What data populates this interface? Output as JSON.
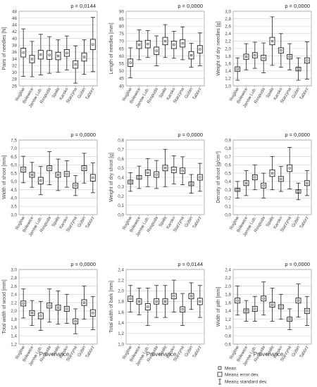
{
  "chart_data": [
    {
      "type": "boxplot",
      "ylabel": "Pairs of needles [N]",
      "pvalue": "p = 0,0144",
      "categories": [
        "Roglów",
        "Bolewice",
        "Janów Lub.",
        "Rospuda",
        "Spała",
        "Karsko",
        "Starzyna",
        "Gubin",
        "Tabórz"
      ],
      "ylim": [
        26,
        48
      ],
      "yticks": [
        26,
        28,
        30,
        32,
        34,
        36,
        38,
        40,
        42,
        44,
        46,
        48
      ],
      "ytick_labels": [
        "26",
        "28",
        "30",
        "32",
        "34",
        "36",
        "38",
        "40",
        "42",
        "44",
        "46",
        "48"
      ],
      "mean": [
        35.8,
        33.9,
        35.2,
        35.1,
        34.8,
        35.7,
        32.3,
        34.5,
        38.2
      ],
      "se": [
        1.3,
        1.1,
        1.3,
        1.3,
        1.1,
        1.0,
        1.1,
        1.2,
        1.5
      ],
      "sd": [
        7.0,
        5.2,
        6.0,
        5.4,
        4.8,
        5.0,
        5.5,
        5.1,
        8.0
      ]
    },
    {
      "type": "boxplot",
      "ylabel": "Length of needles [mm]",
      "pvalue": "p = 0,0000",
      "categories": [
        "Roglów",
        "Bolewice",
        "Janów Lub.",
        "Rospuda",
        "Spała",
        "Karsko",
        "Starzyna",
        "Gubin",
        "Tabórz"
      ],
      "ylim": [
        40,
        90
      ],
      "yticks": [
        40,
        45,
        50,
        55,
        60,
        65,
        70,
        75,
        80,
        85,
        90
      ],
      "ytick_labels": [
        "40",
        "45",
        "50",
        "55",
        "60",
        "65",
        "70",
        "75",
        "80",
        "85",
        "90"
      ],
      "mean": [
        55.5,
        67.5,
        68.0,
        63.5,
        70.0,
        67.5,
        68.5,
        60.5,
        64.5
      ],
      "se": [
        2.5,
        2.5,
        2.5,
        2.5,
        2.5,
        2.5,
        2.5,
        2.5,
        2.5
      ],
      "sd": [
        10,
        10,
        9,
        10,
        11,
        9,
        11,
        8,
        11
      ]
    },
    {
      "type": "boxplot",
      "ylabel": "Weight of dry needles [g]",
      "pvalue": "p = 0,0000",
      "categories": [
        "Roglów",
        "Bolewice",
        "Janów Lub.",
        "Rospuda",
        "Spała",
        "Karsko",
        "Starzyna",
        "Gubin",
        "Tabórz"
      ],
      "ylim": [
        1.0,
        3.0
      ],
      "yticks": [
        1.0,
        1.2,
        1.4,
        1.6,
        1.8,
        2.0,
        2.2,
        2.4,
        2.6,
        2.8,
        3.0
      ],
      "ytick_labels": [
        "1,0",
        "1,2",
        "1,4",
        "1,6",
        "1,8",
        "2,0",
        "2,2",
        "2,4",
        "2,6",
        "2,8",
        "3,0"
      ],
      "mean": [
        1.45,
        1.78,
        1.82,
        1.75,
        2.2,
        1.95,
        1.78,
        1.45,
        1.68
      ],
      "se": [
        0.06,
        0.07,
        0.07,
        0.07,
        0.1,
        0.07,
        0.06,
        0.05,
        0.07
      ],
      "sd": [
        0.3,
        0.35,
        0.35,
        0.4,
        0.65,
        0.45,
        0.35,
        0.3,
        0.5
      ]
    },
    {
      "type": "boxplot",
      "ylabel": "Width of shoot [mm]",
      "pvalue": "p = 0,0000",
      "categories": [
        "Roglów",
        "Bolewice",
        "Janów Lub.",
        "Rospuda",
        "Spała",
        "Karsko",
        "Starzyna",
        "Gubin",
        "Tabórz"
      ],
      "ylim": [
        3.0,
        7.5
      ],
      "yticks": [
        3.0,
        3.5,
        4.0,
        4.5,
        5.0,
        5.5,
        6.0,
        6.5,
        7.0,
        7.5
      ],
      "ytick_labels": [
        "3,0",
        "3,5",
        "4,0",
        "4,5",
        "5,0",
        "5,5",
        "6,0",
        "6,5",
        "7,0",
        "7,5"
      ],
      "mean": [
        5.72,
        5.4,
        5.05,
        5.8,
        5.4,
        5.45,
        4.75,
        5.8,
        5.22
      ],
      "se": [
        0.15,
        0.15,
        0.2,
        0.15,
        0.15,
        0.15,
        0.15,
        0.15,
        0.2
      ],
      "sd": [
        0.8,
        0.75,
        0.85,
        1.0,
        0.95,
        0.8,
        0.6,
        0.9,
        0.9
      ]
    },
    {
      "type": "boxplot",
      "ylabel": "Weight of dry shoot [g]",
      "pvalue": "p = 0,0000",
      "categories": [
        "Roglów",
        "Bolewice",
        "Janów Lub.",
        "Rospuda",
        "Spała",
        "Karsko",
        "Starzyna",
        "Gubin",
        "Tabórz"
      ],
      "ylim": [
        0.0,
        0.8
      ],
      "yticks": [
        0.0,
        0.1,
        0.2,
        0.3,
        0.4,
        0.5,
        0.6,
        0.7,
        0.8
      ],
      "ytick_labels": [
        "0,0",
        "0,1",
        "0,2",
        "0,3",
        "0,4",
        "0,5",
        "0,6",
        "0,7",
        "0,8"
      ],
      "mean": [
        0.35,
        0.4,
        0.45,
        0.43,
        0.5,
        0.48,
        0.47,
        0.33,
        0.4
      ],
      "se": [
        0.02,
        0.02,
        0.03,
        0.03,
        0.03,
        0.03,
        0.03,
        0.02,
        0.03
      ],
      "sd": [
        0.1,
        0.12,
        0.15,
        0.15,
        0.2,
        0.15,
        0.15,
        0.1,
        0.15
      ]
    },
    {
      "type": "boxplot",
      "ylabel": "Density of shoot [g/cm³]",
      "pvalue": "p = 0,0000",
      "categories": [
        "Roglów",
        "Bolewice",
        "Janów Lub.",
        "Rospuda",
        "Spała",
        "Karsko",
        "Starzyna",
        "Gubin",
        "Tabórz"
      ],
      "ylim": [
        0.0,
        0.9
      ],
      "yticks": [
        0.0,
        0.1,
        0.2,
        0.3,
        0.4,
        0.5,
        0.6,
        0.7,
        0.8,
        0.9
      ],
      "ytick_labels": [
        "0,0",
        "0,1",
        "0,2",
        "0,3",
        "0,4",
        "0,5",
        "0,6",
        "0,7",
        "0,8",
        "0,9"
      ],
      "mean": [
        0.3,
        0.38,
        0.45,
        0.35,
        0.5,
        0.43,
        0.56,
        0.28,
        0.38
      ],
      "se": [
        0.02,
        0.03,
        0.03,
        0.03,
        0.04,
        0.03,
        0.04,
        0.02,
        0.03
      ],
      "sd": [
        0.1,
        0.15,
        0.15,
        0.15,
        0.2,
        0.15,
        0.25,
        0.1,
        0.15
      ]
    },
    {
      "type": "boxplot",
      "ylabel": "Total width of wood [mm]",
      "pvalue": "p = 0,0000",
      "categories": [
        "Roglów",
        "Bolewice",
        "Janów Lub.",
        "Rospuda",
        "Spała",
        "Karsko",
        "Starzyna",
        "Gubin",
        "Tabórz"
      ],
      "ylim": [
        1.2,
        3.0
      ],
      "yticks": [
        1.2,
        1.4,
        1.6,
        1.8,
        2.0,
        2.2,
        2.4,
        2.6,
        2.8,
        3.0
      ],
      "ytick_labels": [
        "1,2",
        "1,4",
        "1,6",
        "1,8",
        "2,0",
        "2,2",
        "2,4",
        "2,6",
        "2,8",
        "3,0"
      ],
      "mean": [
        2.18,
        1.95,
        1.88,
        2.13,
        2.08,
        2.05,
        1.75,
        2.2,
        1.95
      ],
      "se": [
        0.06,
        0.06,
        0.07,
        0.06,
        0.06,
        0.06,
        0.06,
        0.07,
        0.08
      ],
      "sd": [
        0.35,
        0.3,
        0.35,
        0.4,
        0.4,
        0.35,
        0.3,
        0.4,
        0.4
      ]
    },
    {
      "type": "boxplot",
      "ylabel": "Total width of bark [mm]",
      "pvalue": "p = 0,0144",
      "categories": [
        "Roglów",
        "Bolewice",
        "Janów Lub.",
        "Rospuda",
        "Spała",
        "Karsko",
        "Starzyna",
        "Gubin",
        "Tabórz"
      ],
      "ylim": [
        1.0,
        2.4
      ],
      "yticks": [
        1.0,
        1.2,
        1.4,
        1.6,
        1.8,
        2.0,
        2.2,
        2.4
      ],
      "ytick_labels": [
        "1,0",
        "1,2",
        "1,4",
        "1,6",
        "1,8",
        "2,0",
        "2,2",
        "2,4"
      ],
      "mean": [
        1.85,
        1.8,
        1.7,
        1.8,
        1.8,
        1.9,
        1.65,
        1.9,
        1.8
      ],
      "se": [
        0.05,
        0.05,
        0.06,
        0.05,
        0.05,
        0.05,
        0.05,
        0.05,
        0.06
      ],
      "sd": [
        0.25,
        0.25,
        0.35,
        0.3,
        0.3,
        0.3,
        0.3,
        0.25,
        0.3
      ]
    },
    {
      "type": "boxplot",
      "ylabel": "Width of pith [mm]",
      "pvalue": "p = 0,0000",
      "categories": [
        "Roglów",
        "Bolewice",
        "Janów Lub.",
        "Rospuda",
        "Spała",
        "Karsko",
        "Starzyna",
        "Gubin",
        "Tabórz"
      ],
      "ylim": [
        0.6,
        2.4
      ],
      "yticks": [
        0.6,
        0.8,
        1.0,
        1.2,
        1.4,
        1.6,
        1.8,
        2.0,
        2.2,
        2.4
      ],
      "ytick_labels": [
        "0,6",
        "0,8",
        "1,0",
        "1,2",
        "1,4",
        "1,6",
        "1,8",
        "2,0",
        "2,2",
        "2,4"
      ],
      "mean": [
        1.65,
        1.4,
        1.45,
        1.7,
        1.55,
        1.5,
        1.2,
        1.65,
        1.4
      ],
      "se": [
        0.06,
        0.05,
        0.06,
        0.06,
        0.06,
        0.05,
        0.05,
        0.06,
        0.06
      ],
      "sd": [
        0.35,
        0.25,
        0.3,
        0.4,
        0.4,
        0.3,
        0.25,
        0.4,
        0.35
      ]
    }
  ],
  "xlabel": "Provenance",
  "legend": {
    "mean": "Mean",
    "se": "Mean± error dev.",
    "sd": "Mean± standard dev."
  }
}
